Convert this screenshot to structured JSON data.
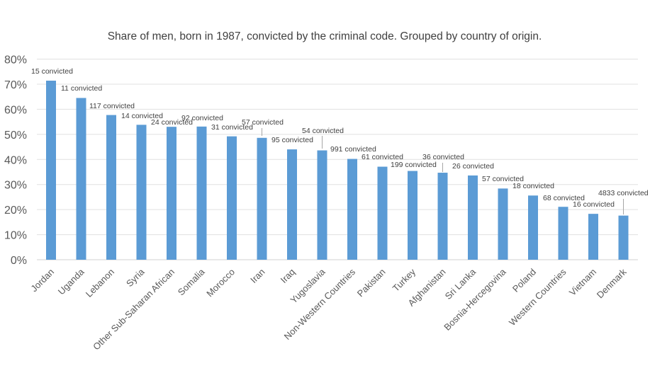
{
  "chart_data": {
    "type": "bar",
    "title": "Share of men, born in 1987, convicted by the criminal code. Grouped by country of origin.",
    "xlabel": "",
    "ylabel": "",
    "ylim": [
      0,
      80
    ],
    "y_unit": "%",
    "y_ticks": [
      "0%",
      "10%",
      "20%",
      "30%",
      "40%",
      "50%",
      "60%",
      "70%",
      "80%"
    ],
    "grid": true,
    "legend": "none",
    "bar_color": "#5B9BD5",
    "categories": [
      "Jordan",
      "Uganda",
      "Lebanon",
      "Syria",
      "Other Sub-Saharan African",
      "Somalia",
      "Morocco",
      "Iran",
      "Iraq",
      "Yugoslavia",
      "Non-Western Countries",
      "Pakistan",
      "Turkey",
      "Afghanistan",
      "Sri Lanka",
      "Bosnia-Hercegovina",
      "Poland",
      "Western Countries",
      "Vietnam",
      "Denmark"
    ],
    "values": [
      71.4,
      64.5,
      57.7,
      53.8,
      53.0,
      53.1,
      49.2,
      48.6,
      44.0,
      43.6,
      40.2,
      37.1,
      35.4,
      34.7,
      33.6,
      28.4,
      25.6,
      21.1,
      18.3,
      17.6
    ],
    "data_labels": [
      "15 convicted",
      "11 convicted",
      "117 convicted",
      "14 convicted",
      "24 convicted",
      "92 convicted",
      "31 convicted",
      "57 convicted",
      "95 convicted",
      "54 convicted",
      "991 convicted",
      "61 convicted",
      "199 convicted",
      "36 convicted",
      "26 convicted",
      "57 convicted",
      "18 convicted",
      "68 convicted",
      "16 convicted",
      "4833 convicted"
    ]
  }
}
